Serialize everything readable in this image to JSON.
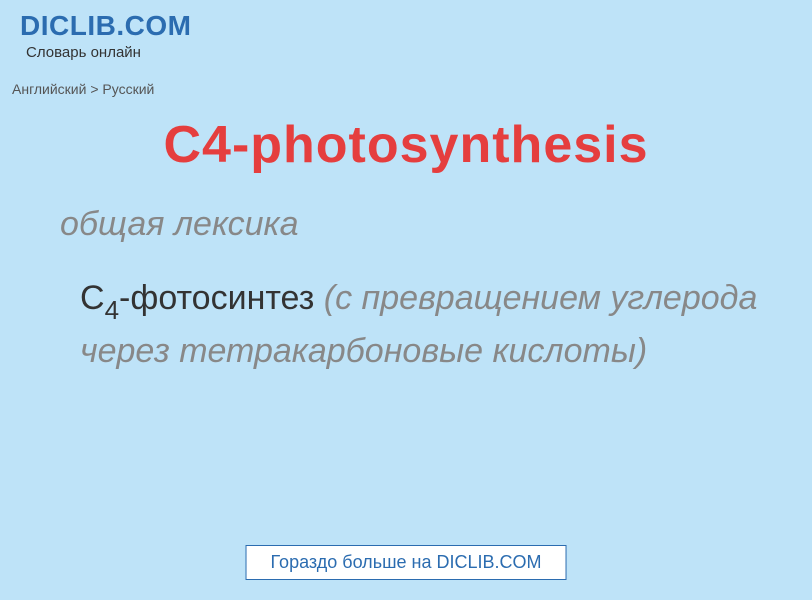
{
  "header": {
    "logo": "DICLIB.COM",
    "tagline": "Словарь онлайн"
  },
  "breadcrumb": "Английский > Русский",
  "term": "C4-photosynthesis",
  "category": "общая лексика",
  "definition": {
    "main_prefix": "C",
    "main_sub": "4",
    "main_suffix": "-фотосинтез",
    "explain": "(с превращением углерода через тетракарбоновые кислоты)"
  },
  "footer": {
    "more_label": "Гораздо больше на DICLIB.COM"
  },
  "colors": {
    "background": "#bee3f8",
    "logo": "#2b6cb0",
    "term": "#e53e3e",
    "muted": "#888888",
    "text": "#333333",
    "footer_bg": "#ffffff",
    "footer_border": "#2b6cb0",
    "footer_text": "#2b6cb0"
  },
  "typography": {
    "logo_fontsize": 28,
    "tagline_fontsize": 15,
    "breadcrumb_fontsize": 14,
    "term_fontsize": 52,
    "category_fontsize": 34,
    "definition_fontsize": 34,
    "sub_fontsize": 26,
    "footer_fontsize": 18
  }
}
